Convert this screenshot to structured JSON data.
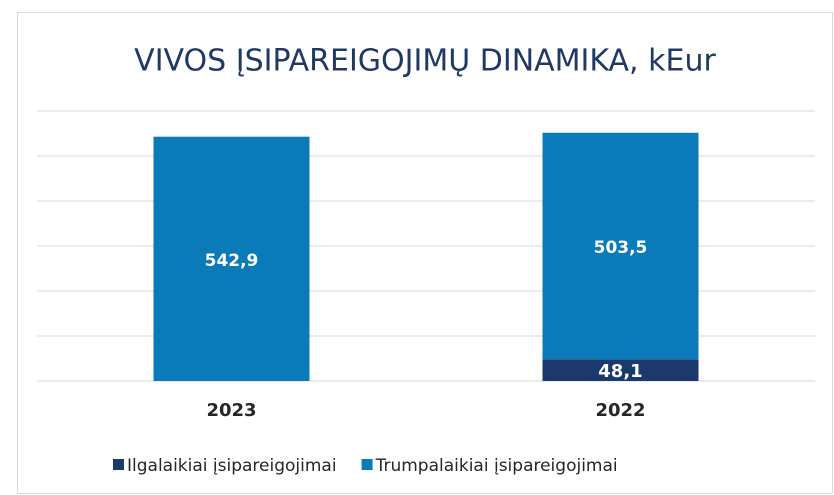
{
  "chart_data": {
    "type": "stacked_bar",
    "title": "VIVOS ĮSIPAREIGOJIMŲ DINAMIKA, kEur",
    "categories": [
      "2023",
      "2022"
    ],
    "series": [
      {
        "name": "Ilgalaikiai įsipareigojimai",
        "color": "#1b3a6b",
        "values": [
          null,
          48.1
        ],
        "value_labels": [
          null,
          "48,1"
        ]
      },
      {
        "name": "Trumpalaikiai įsipareigojimai",
        "color": "#0b7ab8",
        "values": [
          542.9,
          503.5
        ],
        "value_labels": [
          "542,9",
          "503,5"
        ]
      }
    ],
    "ylim": [
      0,
      600
    ],
    "yticks": [
      0,
      100,
      200,
      300,
      400,
      500,
      600
    ],
    "grid": true,
    "legend": "bottom"
  }
}
